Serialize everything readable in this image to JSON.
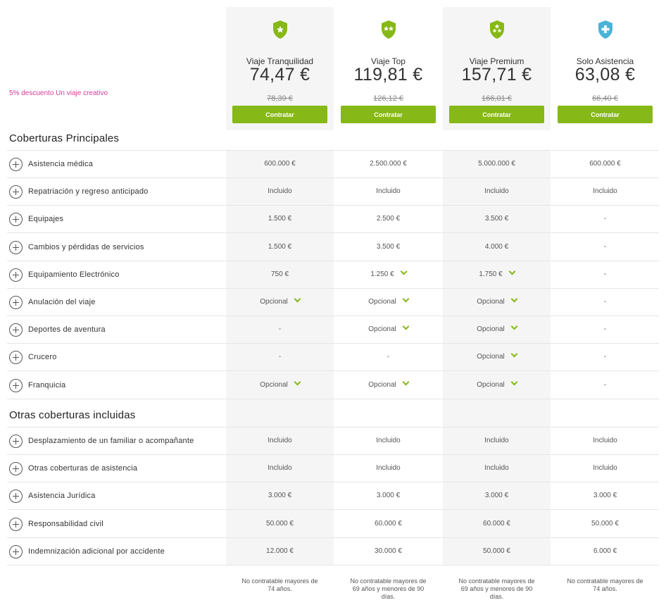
{
  "promo": "5% descuento Un viaje creativo",
  "colors": {
    "accent": "#86b817",
    "assist": "#4ab3d6",
    "promo": "#d83b97"
  },
  "plans": [
    {
      "name": "Viaje Tranquilidad",
      "price": "74,47 €",
      "old_price": "78,39 €",
      "button": "Contratar",
      "icon": "shield-star-icon",
      "stars": 1
    },
    {
      "name": "Viaje Top",
      "price": "119,81 €",
      "old_price": "126,12 €",
      "button": "Contratar",
      "icon": "shield-two-stars-icon",
      "stars": 2
    },
    {
      "name": "Viaje Premium",
      "price": "157,71 €",
      "old_price": "166,01 €",
      "button": "Contratar",
      "icon": "shield-three-stars-icon",
      "stars": 3
    },
    {
      "name": "Solo Asistencia",
      "price": "63,08 €",
      "old_price": "66,40 €",
      "button": "Contratar",
      "icon": "shield-cross-icon",
      "stars": 0
    }
  ],
  "sections": [
    {
      "title": "Coberturas Principales",
      "rows": [
        {
          "label": "Asistencia médica",
          "values": [
            "600.000 €",
            "2.500.000 €",
            "5.000.000 €",
            "600.000 €"
          ],
          "chevrons": [
            false,
            false,
            false,
            false
          ]
        },
        {
          "label": "Repatriación y regreso anticipado",
          "values": [
            "Incluido",
            "Incluido",
            "Incluido",
            "Incluido"
          ],
          "chevrons": [
            false,
            false,
            false,
            false
          ]
        },
        {
          "label": "Equipajes",
          "values": [
            "1.500 €",
            "2.500 €",
            "3.500 €",
            "-"
          ],
          "chevrons": [
            false,
            false,
            false,
            false
          ]
        },
        {
          "label": "Cambios y pérdidas de servicios",
          "values": [
            "1.500 €",
            "3.500 €",
            "4.000 €",
            "-"
          ],
          "chevrons": [
            false,
            false,
            false,
            false
          ]
        },
        {
          "label": "Equipamiento Electrónico",
          "values": [
            "750 €",
            "1.250 €",
            "1.750 €",
            "-"
          ],
          "chevrons": [
            false,
            true,
            true,
            false
          ]
        },
        {
          "label": "Anulación del viaje",
          "values": [
            "Opcional",
            "Opcional",
            "Opcional",
            "-"
          ],
          "chevrons": [
            true,
            true,
            true,
            false
          ]
        },
        {
          "label": "Deportes de aventura",
          "values": [
            "-",
            "Opcional",
            "Opcional",
            "-"
          ],
          "chevrons": [
            false,
            true,
            true,
            false
          ]
        },
        {
          "label": "Crucero",
          "values": [
            "-",
            "-",
            "Opcional",
            "-"
          ],
          "chevrons": [
            false,
            false,
            true,
            false
          ]
        },
        {
          "label": "Franquicia",
          "values": [
            "Opcional",
            "Opcional",
            "Opcional",
            "-"
          ],
          "chevrons": [
            true,
            true,
            true,
            false
          ]
        }
      ]
    },
    {
      "title": "Otras coberturas incluidas",
      "rows": [
        {
          "label": "Desplazamiento de un familiar o acompañante",
          "values": [
            "Incluido",
            "Incluido",
            "Incluido",
            "Incluido"
          ],
          "chevrons": [
            false,
            false,
            false,
            false
          ]
        },
        {
          "label": "Otras coberturas de asistencia",
          "values": [
            "Incluido",
            "Incluido",
            "Incluido",
            "Incluido"
          ],
          "chevrons": [
            false,
            false,
            false,
            false
          ]
        },
        {
          "label": "Asistencia Jurídica",
          "values": [
            "3.000 €",
            "3.000 €",
            "3.000 €",
            "3.000 €"
          ],
          "chevrons": [
            false,
            false,
            false,
            false
          ]
        },
        {
          "label": "Responsabilidad civil",
          "values": [
            "50.000 €",
            "60.000 €",
            "60.000 €",
            "50.000 €"
          ],
          "chevrons": [
            false,
            false,
            false,
            false
          ]
        },
        {
          "label": "Indemnización adicional por accidente",
          "values": [
            "12.000 €",
            "30.000 €",
            "50.000 €",
            "6.000 €"
          ],
          "chevrons": [
            false,
            false,
            false,
            false
          ]
        }
      ]
    }
  ],
  "notes": [
    "No contratable mayores de 74 años.",
    "No contratable mayores de 69 años y menores de 90 días.",
    "No contratable mayores de 69 años y menores de 90 días.",
    "No contratable mayores de 74 años."
  ]
}
